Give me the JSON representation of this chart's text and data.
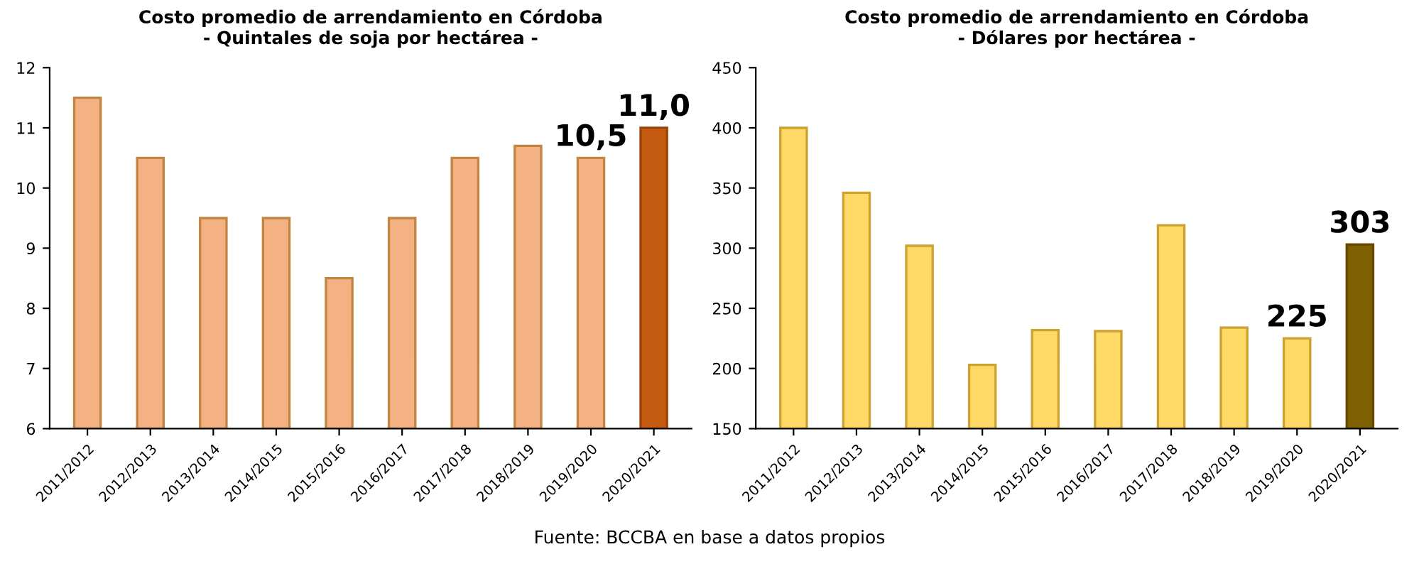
{
  "chart_data": [
    {
      "type": "bar",
      "title": "Costo promedio de arrendamiento en Córdoba",
      "subtitle": "- Quintales de soja por hectárea -",
      "categories": [
        "2011/2012",
        "2012/2013",
        "2013/2014",
        "2014/2015",
        "2015/2016",
        "2016/2017",
        "2017/2018",
        "2018/2019",
        "2019/2020",
        "2020/2021"
      ],
      "values": [
        11.5,
        10.5,
        9.5,
        9.5,
        8.5,
        9.5,
        10.5,
        10.7,
        10.5,
        11.0
      ],
      "colors": [
        "#f4b183",
        "#f4b183",
        "#f4b183",
        "#f4b183",
        "#f4b183",
        "#f4b183",
        "#f4b183",
        "#f4b183",
        "#f4b183",
        "#c55a11"
      ],
      "value_labels": [
        null,
        null,
        null,
        null,
        null,
        null,
        null,
        null,
        "10,5",
        "11,0"
      ],
      "ylim": [
        6,
        12
      ],
      "yticks": [
        6,
        7,
        8,
        9,
        10,
        11,
        12
      ],
      "grid": false,
      "legend": false,
      "annotations": [
        "Fuente: BCCBA en base a datos propios"
      ]
    },
    {
      "type": "bar",
      "title": "Costo promedio de arrendamiento en Córdoba",
      "subtitle": "- Dólares por hectárea -",
      "categories": [
        "2011/2012",
        "2012/2013",
        "2013/2014",
        "2014/2015",
        "2015/2016",
        "2016/2017",
        "2017/2018",
        "2018/2019",
        "2019/2020",
        "2020/2021"
      ],
      "values": [
        400,
        346,
        302,
        203,
        232,
        231,
        319,
        234,
        225,
        303
      ],
      "colors": [
        "#ffd966",
        "#ffd966",
        "#ffd966",
        "#ffd966",
        "#ffd966",
        "#ffd966",
        "#ffd966",
        "#ffd966",
        "#ffd966",
        "#7f6000"
      ],
      "value_labels": [
        null,
        null,
        null,
        null,
        null,
        null,
        null,
        null,
        "225",
        "303"
      ],
      "ylim": [
        150,
        450
      ],
      "yticks": [
        150,
        200,
        250,
        300,
        350,
        400,
        450
      ],
      "grid": false,
      "legend": false
    }
  ]
}
